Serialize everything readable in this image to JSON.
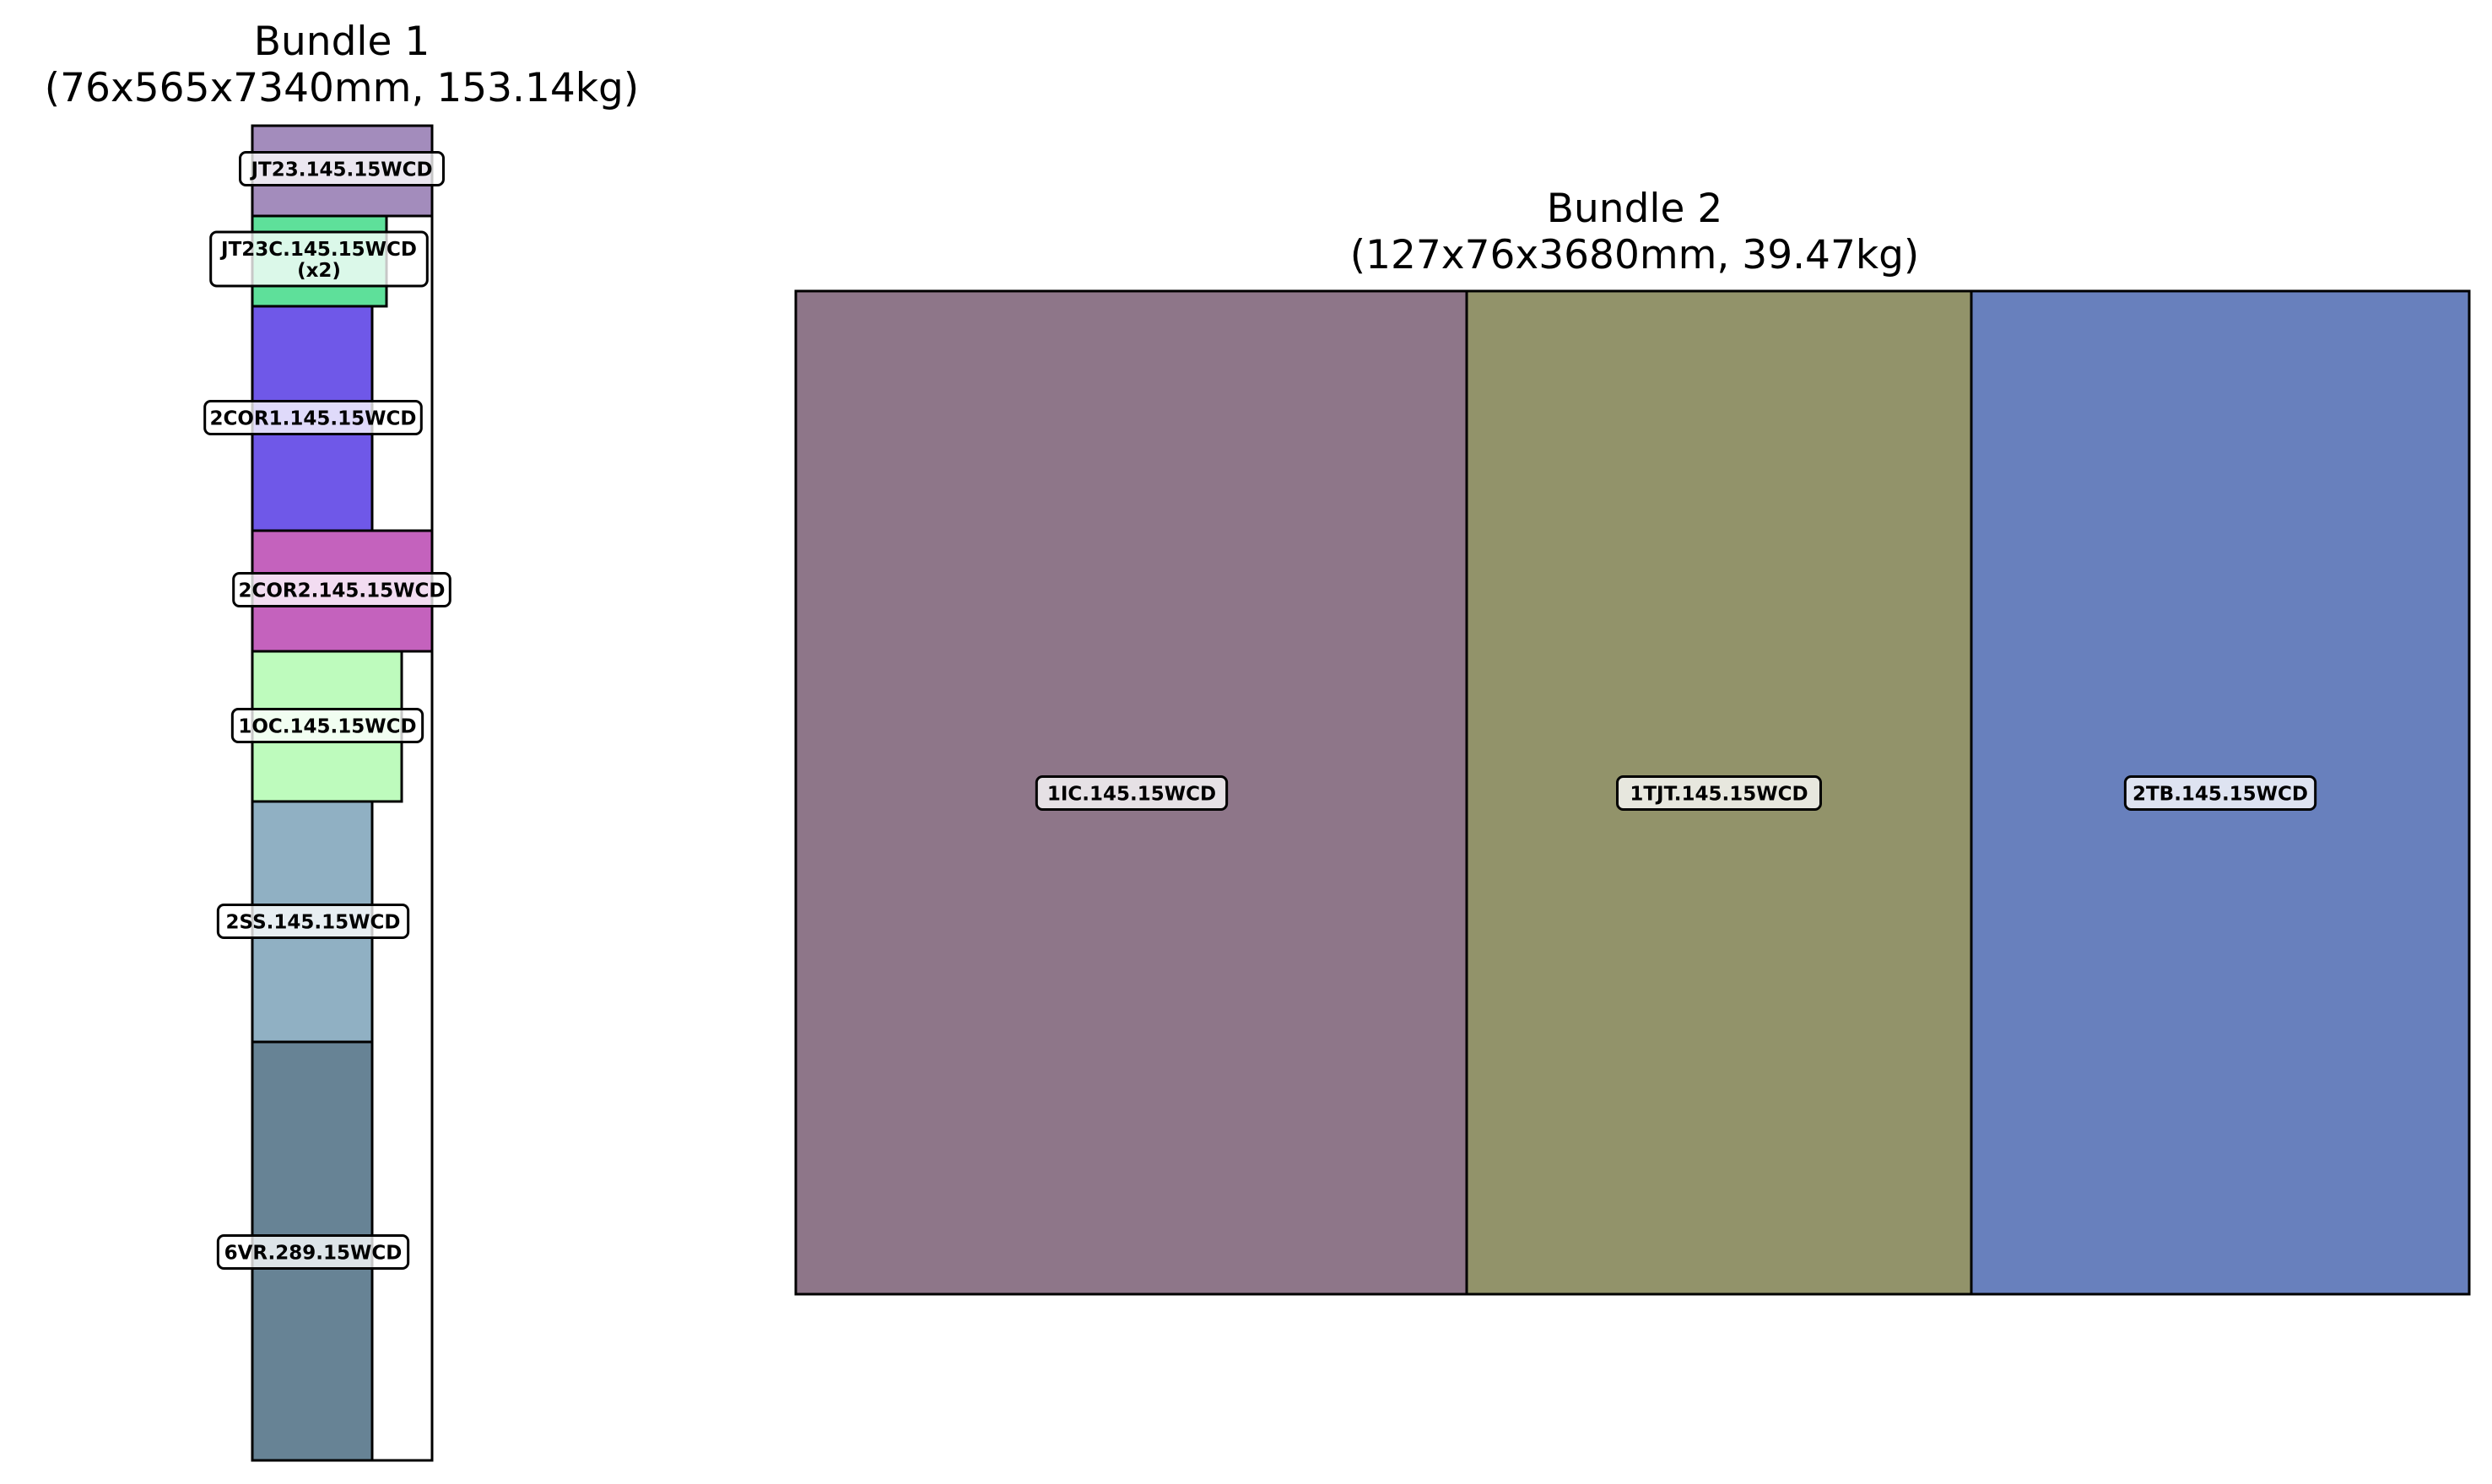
{
  "bundle1": {
    "title": "Bundle 1",
    "subtitle": "(76x565x7340mm, 153.14kg)",
    "items": [
      {
        "label": "JT23.145.15WCD",
        "color": "#a38cbc"
      },
      {
        "label": "JT23C.145.15WCD\n(x2)",
        "color": "#5ee09a"
      },
      {
        "label": "2COR1.145.15WCD",
        "color": "#6f58e8"
      },
      {
        "label": "2COR2.145.15WCD",
        "color": "#c462bd"
      },
      {
        "label": "1OC.145.15WCD",
        "color": "#befbbd"
      },
      {
        "label": "2SS.145.15WCD",
        "color": "#90b0c3"
      },
      {
        "label": "6VR.289.15WCD",
        "color": "#678395"
      }
    ]
  },
  "bundle2": {
    "title": "Bundle 2",
    "subtitle": "(127x76x3680mm, 39.47kg)",
    "items": [
      {
        "label": "1IC.145.15WCD",
        "color": "#8e7689"
      },
      {
        "label": "1TJT.145.15WCD",
        "color": "#92936a"
      },
      {
        "label": "2TB.145.15WCD",
        "color": "#6880bd"
      }
    ]
  }
}
